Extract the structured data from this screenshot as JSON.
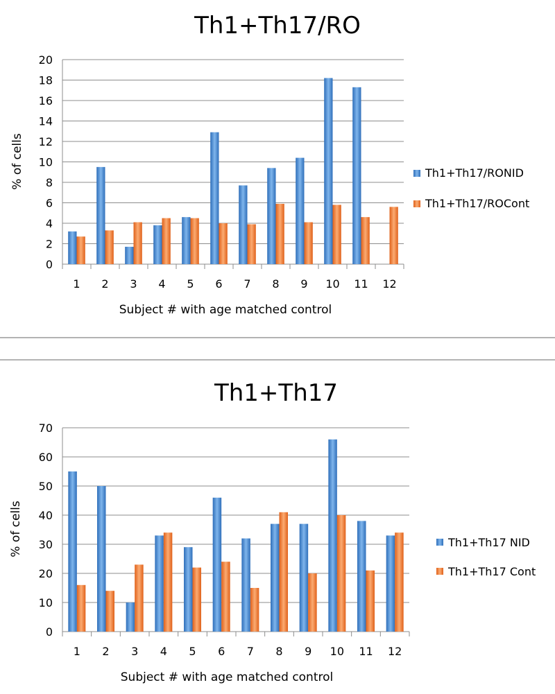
{
  "colors": {
    "nid": "#4a8fd6",
    "cont": "#f07a2e",
    "grid": "#8c8c8c",
    "divider": "#9a9a9a"
  },
  "chart_data": [
    {
      "type": "bar",
      "title": "Th1+Th17/RO",
      "xlabel": "Subject # with age matched control",
      "ylabel": "% of cells",
      "ylim": [
        0,
        20
      ],
      "ystep": 2,
      "grid": true,
      "legend": "right",
      "categories": [
        "1",
        "2",
        "3",
        "4",
        "5",
        "6",
        "7",
        "8",
        "9",
        "10",
        "11",
        "12"
      ],
      "series": [
        {
          "name": "Th1+Th17/RONID",
          "values": [
            3.2,
            9.5,
            1.7,
            3.8,
            4.6,
            12.9,
            7.7,
            9.4,
            10.4,
            18.2,
            17.3,
            null
          ]
        },
        {
          "name": "Th1+Th17/ROCont",
          "values": [
            2.7,
            3.3,
            4.1,
            4.5,
            4.5,
            4.0,
            3.9,
            5.9,
            4.1,
            5.8,
            4.6,
            5.6
          ]
        }
      ]
    },
    {
      "type": "bar",
      "title": "Th1+Th17",
      "xlabel": "Subject # with age matched control",
      "ylabel": "% of cells",
      "ylim": [
        0,
        70
      ],
      "ystep": 10,
      "grid": true,
      "legend": "right",
      "categories": [
        "1",
        "2",
        "3",
        "4",
        "5",
        "6",
        "7",
        "8",
        "9",
        "10",
        "11",
        "12"
      ],
      "series": [
        {
          "name": "Th1+Th17 NID",
          "values": [
            55,
            50,
            10,
            33,
            29,
            46,
            32,
            37,
            37,
            66,
            38,
            33
          ]
        },
        {
          "name": "Th1+Th17 Cont",
          "values": [
            16,
            14,
            23,
            34,
            22,
            24,
            15,
            41,
            20,
            40,
            21,
            34
          ]
        }
      ]
    }
  ]
}
